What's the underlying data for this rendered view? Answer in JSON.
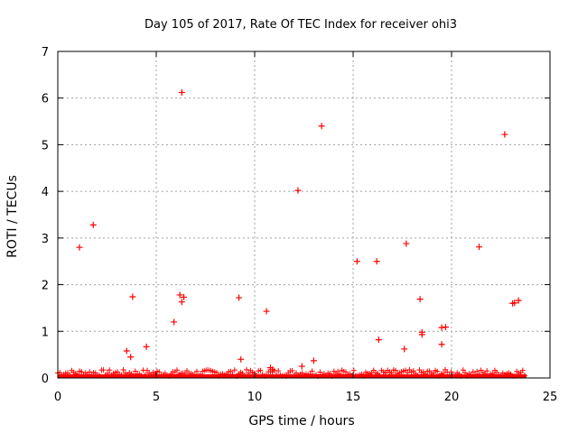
{
  "chart_data": {
    "type": "scatter",
    "title": "Day 105 of 2017, Rate Of TEC Index for receiver ohi3",
    "xlabel": "GPS time / hours",
    "ylabel": "ROTI / TECUs",
    "xlim": [
      0,
      25
    ],
    "ylim": [
      0,
      7
    ],
    "xticks": [
      0,
      5,
      10,
      15,
      20,
      25
    ],
    "yticks": [
      0,
      1,
      2,
      3,
      4,
      5,
      6,
      7
    ],
    "xtick_labels": [
      "0",
      "5",
      "10",
      "15",
      "20",
      "25"
    ],
    "ytick_labels": [
      "0",
      "1",
      "2",
      "3",
      "4",
      "5",
      "6",
      "7"
    ],
    "grid": true,
    "marker": "+",
    "series": [
      {
        "name": "ohi3",
        "color": "#ff0000",
        "baseline_band": {
          "x_start": 0.0,
          "x_end": 23.8,
          "y_min": 0.0,
          "y_max": 0.08
        },
        "points": [
          [
            1.1,
            2.8
          ],
          [
            1.8,
            3.28
          ],
          [
            3.5,
            0.58
          ],
          [
            3.7,
            0.45
          ],
          [
            3.8,
            1.74
          ],
          [
            4.5,
            0.67
          ],
          [
            5.9,
            1.2
          ],
          [
            6.2,
            1.78
          ],
          [
            6.3,
            6.12
          ],
          [
            6.3,
            1.63
          ],
          [
            6.4,
            1.73
          ],
          [
            9.2,
            1.72
          ],
          [
            9.3,
            0.4
          ],
          [
            10.6,
            1.43
          ],
          [
            10.8,
            0.22
          ],
          [
            10.9,
            0.18
          ],
          [
            12.2,
            4.02
          ],
          [
            12.4,
            0.25
          ],
          [
            13.0,
            0.37
          ],
          [
            13.4,
            5.4
          ],
          [
            15.2,
            2.5
          ],
          [
            16.2,
            2.5
          ],
          [
            16.3,
            0.82
          ],
          [
            17.6,
            0.62
          ],
          [
            17.7,
            2.88
          ],
          [
            18.4,
            1.69
          ],
          [
            18.5,
            0.98
          ],
          [
            18.5,
            0.93
          ],
          [
            19.5,
            1.08
          ],
          [
            19.5,
            0.72
          ],
          [
            19.7,
            1.09
          ],
          [
            21.4,
            2.81
          ],
          [
            22.7,
            5.22
          ],
          [
            23.1,
            1.6
          ],
          [
            23.2,
            1.61
          ],
          [
            23.4,
            1.66
          ]
        ]
      }
    ]
  }
}
